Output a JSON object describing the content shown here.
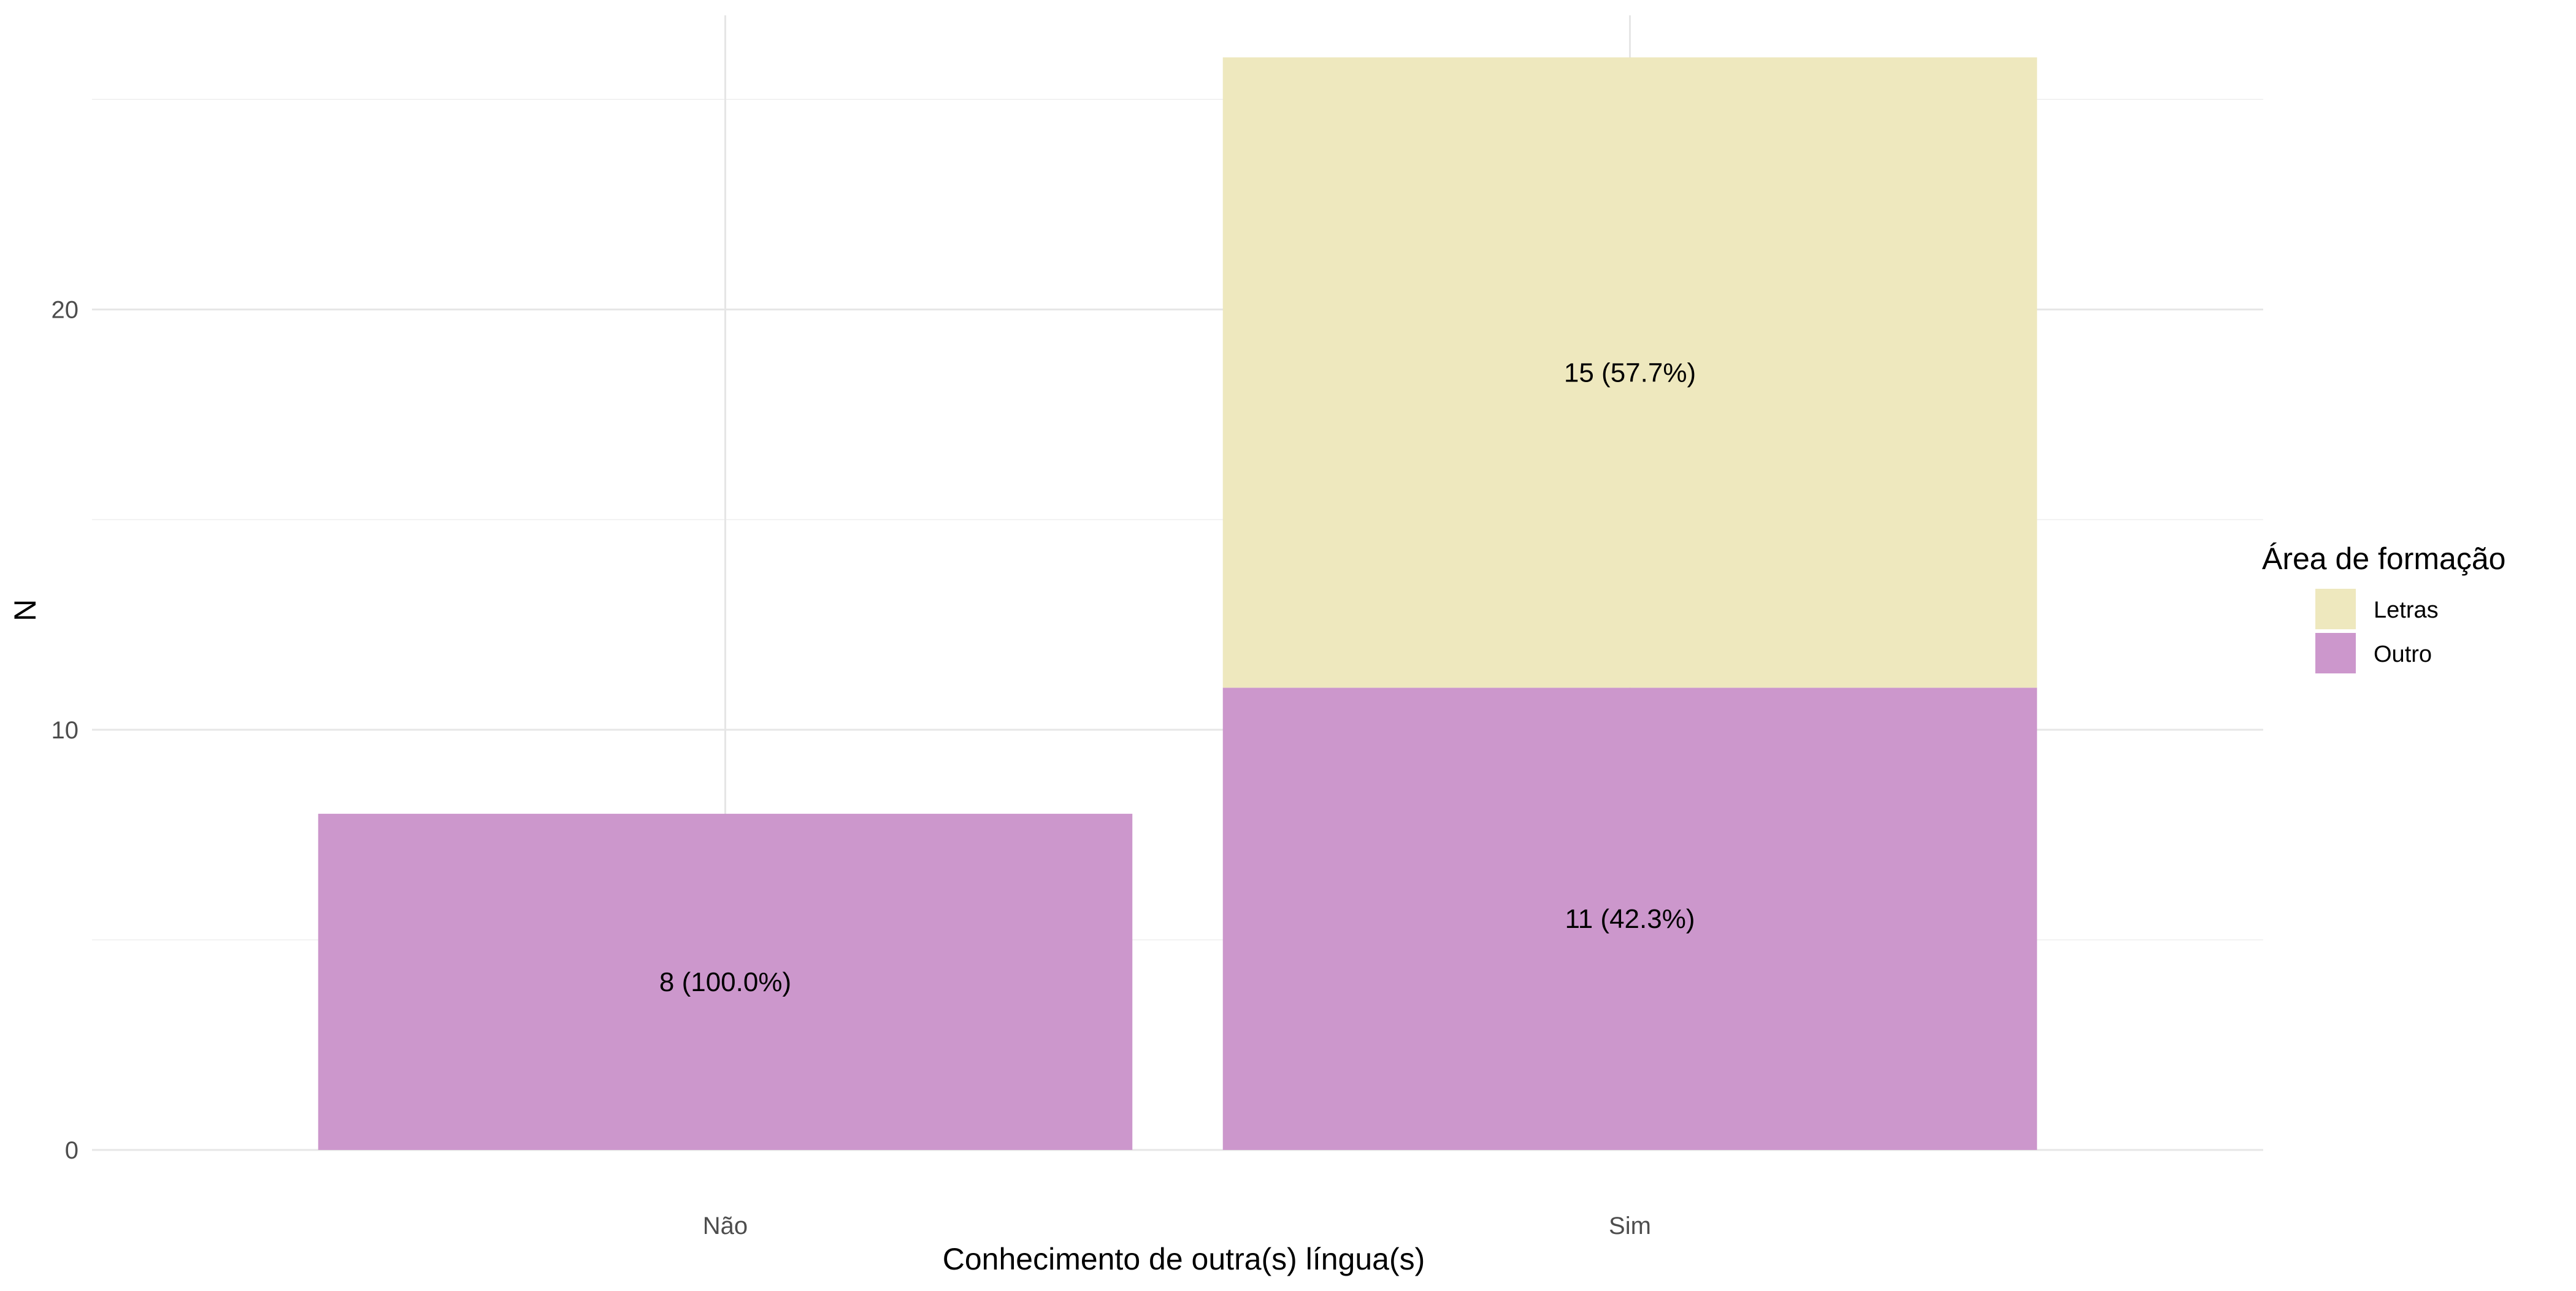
{
  "chart_data": {
    "type": "bar",
    "stacked": true,
    "categories": [
      "Não",
      "Sim"
    ],
    "series": [
      {
        "name": "Outro",
        "values": [
          8,
          11
        ],
        "labels": [
          "8 (100.0%)",
          "11 (42.3%)"
        ]
      },
      {
        "name": "Letras",
        "values": [
          0,
          15
        ],
        "labels": [
          "",
          "15 (57.7%)"
        ]
      }
    ],
    "xlabel": "Conhecimento de outra(s) língua(s)",
    "ylabel": "N",
    "ylim": [
      0,
      27
    ],
    "y_ticks": [
      0,
      10,
      20
    ],
    "grid": true,
    "legend": {
      "title": "Área de formação",
      "position": "right",
      "items": [
        {
          "label": "Letras",
          "color": "#EEE8BE"
        },
        {
          "label": "Outro",
          "color": "#CC97CC"
        }
      ]
    },
    "colors": {
      "Letras": "#EEE8BE",
      "Outro": "#CC97CC"
    }
  }
}
